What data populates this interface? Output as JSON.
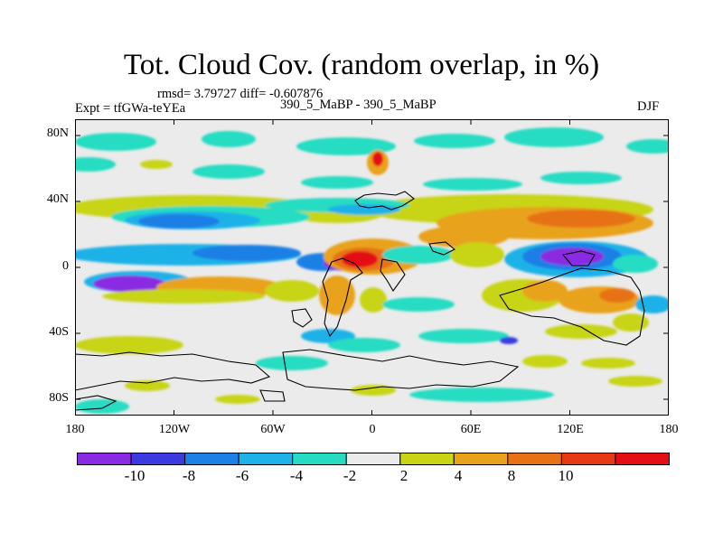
{
  "figure": {
    "title": "Tot. Cloud Cov. (random overlap, in %)",
    "stats": "rmsd= 3.79727 diff= -0.607876",
    "experiment": "Expt = tfGWa-teYEa",
    "comparison": "390_5_MaBP - 390_5_MaBP",
    "season": "DJF"
  },
  "axes": {
    "lat_ticks": [
      "80N",
      "40N",
      "0",
      "40S",
      "80S"
    ],
    "lon_ticks": [
      "180",
      "120W",
      "60W",
      "0",
      "60E",
      "120E",
      "180"
    ]
  },
  "colorbar": {
    "colors": [
      "#8a2be2",
      "#3a3adf",
      "#1e7fe6",
      "#1fb2e8",
      "#25dcc3",
      "#ebebeb",
      "#c8d414",
      "#e9a21c",
      "#e77215",
      "#e83a12",
      "#e40f14"
    ],
    "labels": [
      "-10",
      "-8",
      "-6",
      "-4",
      "-2",
      "2",
      "4",
      "8",
      "10"
    ]
  }
}
